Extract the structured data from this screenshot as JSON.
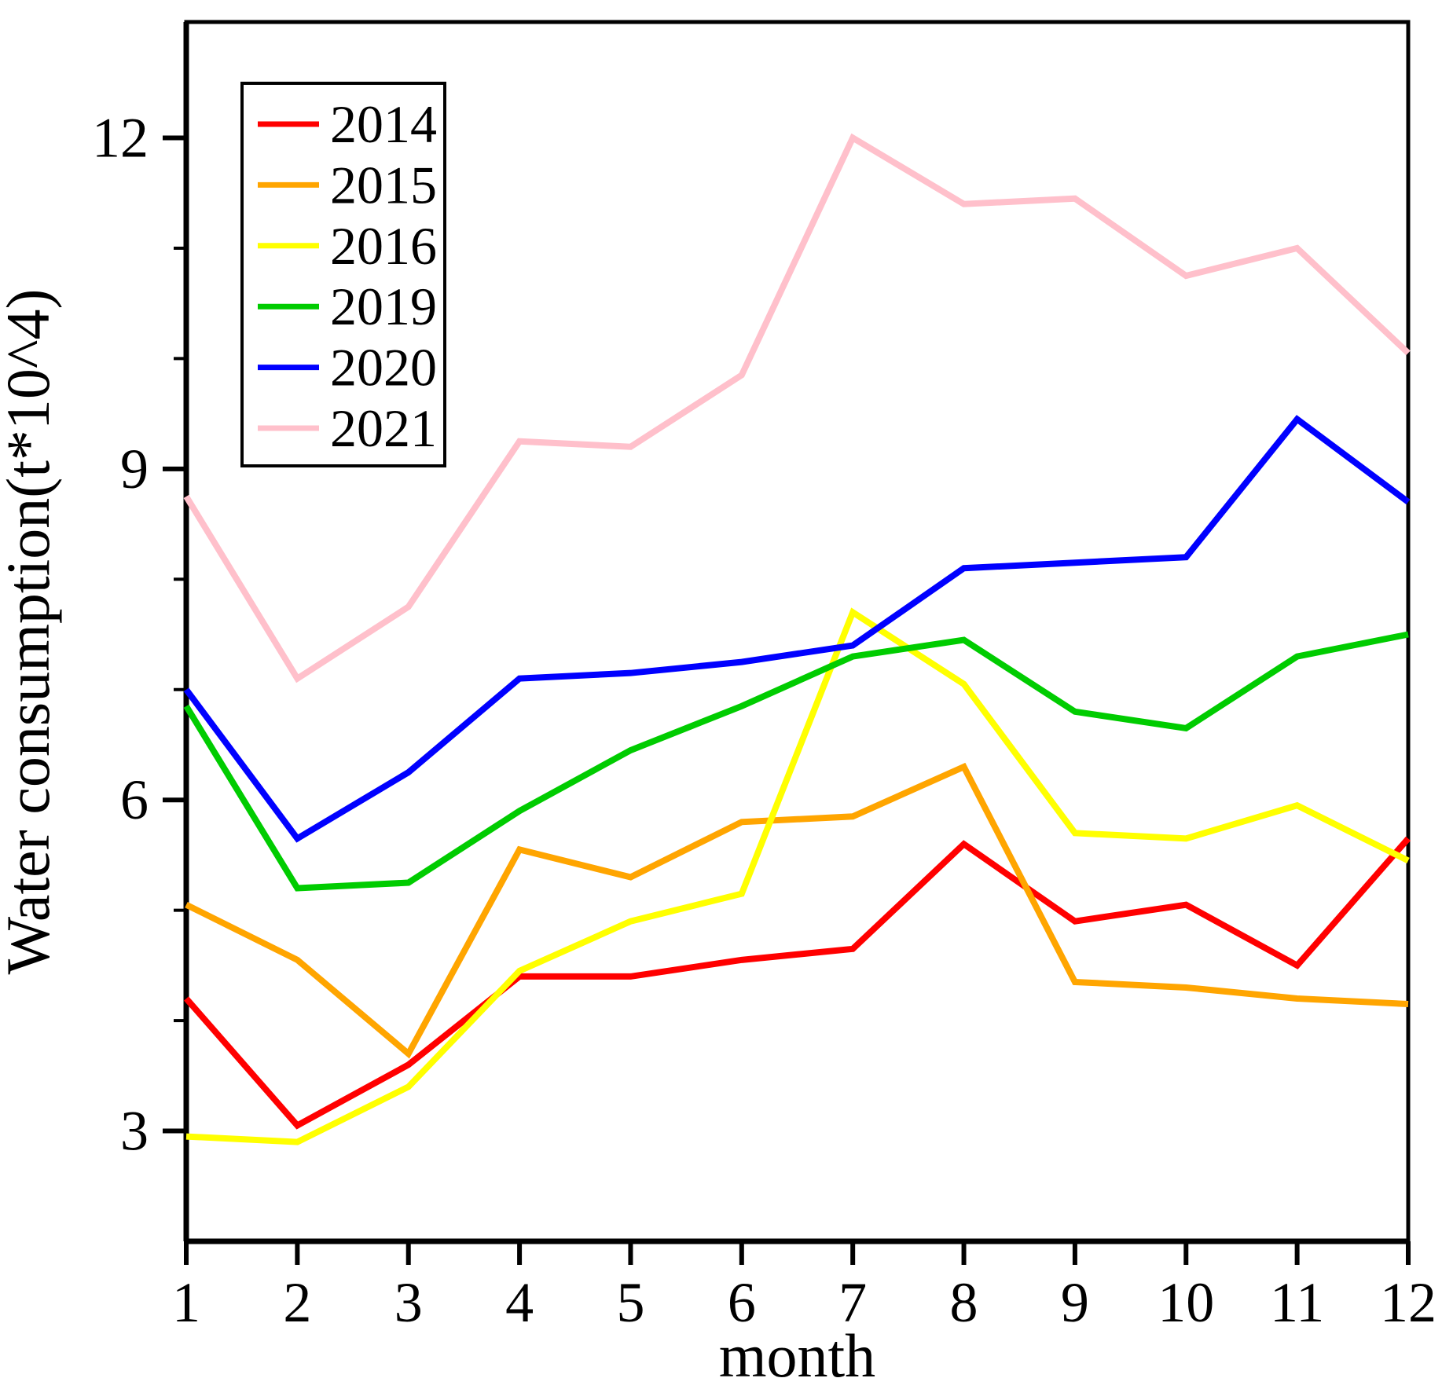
{
  "chart_data": {
    "type": "line",
    "title": "",
    "xlabel": "month",
    "ylabel": "Water consumption(t*10^4)",
    "x": [
      1,
      2,
      3,
      4,
      5,
      6,
      7,
      8,
      9,
      10,
      11,
      12
    ],
    "xlim": [
      1,
      12
    ],
    "ylim": [
      2,
      13.05
    ],
    "x_ticks": [
      "1",
      "2",
      "3",
      "4",
      "5",
      "6",
      "7",
      "8",
      "9",
      "10",
      "11",
      "12"
    ],
    "y_major_ticks": [
      "3",
      "6",
      "9",
      "12"
    ],
    "y_major_tick_values": [
      3,
      6,
      9,
      12
    ],
    "y_minor_tick_values": [
      4,
      5,
      7,
      8,
      10,
      11
    ],
    "grid": false,
    "legend_position": "top-left",
    "axis_color": "#000000",
    "background_color": "#ffffff",
    "series": [
      {
        "name": "2014",
        "color": "#ff0000",
        "values": [
          4.2,
          3.05,
          3.6,
          4.4,
          4.4,
          4.55,
          4.65,
          5.6,
          4.9,
          5.05,
          4.5,
          5.65
        ]
      },
      {
        "name": "2015",
        "color": "#ffa500",
        "values": [
          5.05,
          4.55,
          3.7,
          5.55,
          5.3,
          5.8,
          5.85,
          6.3,
          4.35,
          4.3,
          4.2,
          4.15
        ]
      },
      {
        "name": "2016",
        "color": "#ffff00",
        "values": [
          2.95,
          2.9,
          3.4,
          4.45,
          4.9,
          5.15,
          7.7,
          7.05,
          5.7,
          5.65,
          5.95,
          5.45
        ]
      },
      {
        "name": "2019",
        "color": "#00cc00",
        "values": [
          6.85,
          5.2,
          5.25,
          5.9,
          6.45,
          6.85,
          7.3,
          7.45,
          6.8,
          6.65,
          7.3,
          7.5
        ]
      },
      {
        "name": "2020",
        "color": "#0000ff",
        "values": [
          7.0,
          5.65,
          6.25,
          7.1,
          7.15,
          7.25,
          7.4,
          8.1,
          8.15,
          8.2,
          9.45,
          8.7
        ]
      },
      {
        "name": "2021",
        "color": "#ffc0cb",
        "values": [
          8.75,
          7.1,
          7.75,
          9.25,
          9.2,
          9.85,
          12.0,
          11.4,
          11.45,
          10.75,
          11.0,
          10.05
        ]
      }
    ]
  }
}
